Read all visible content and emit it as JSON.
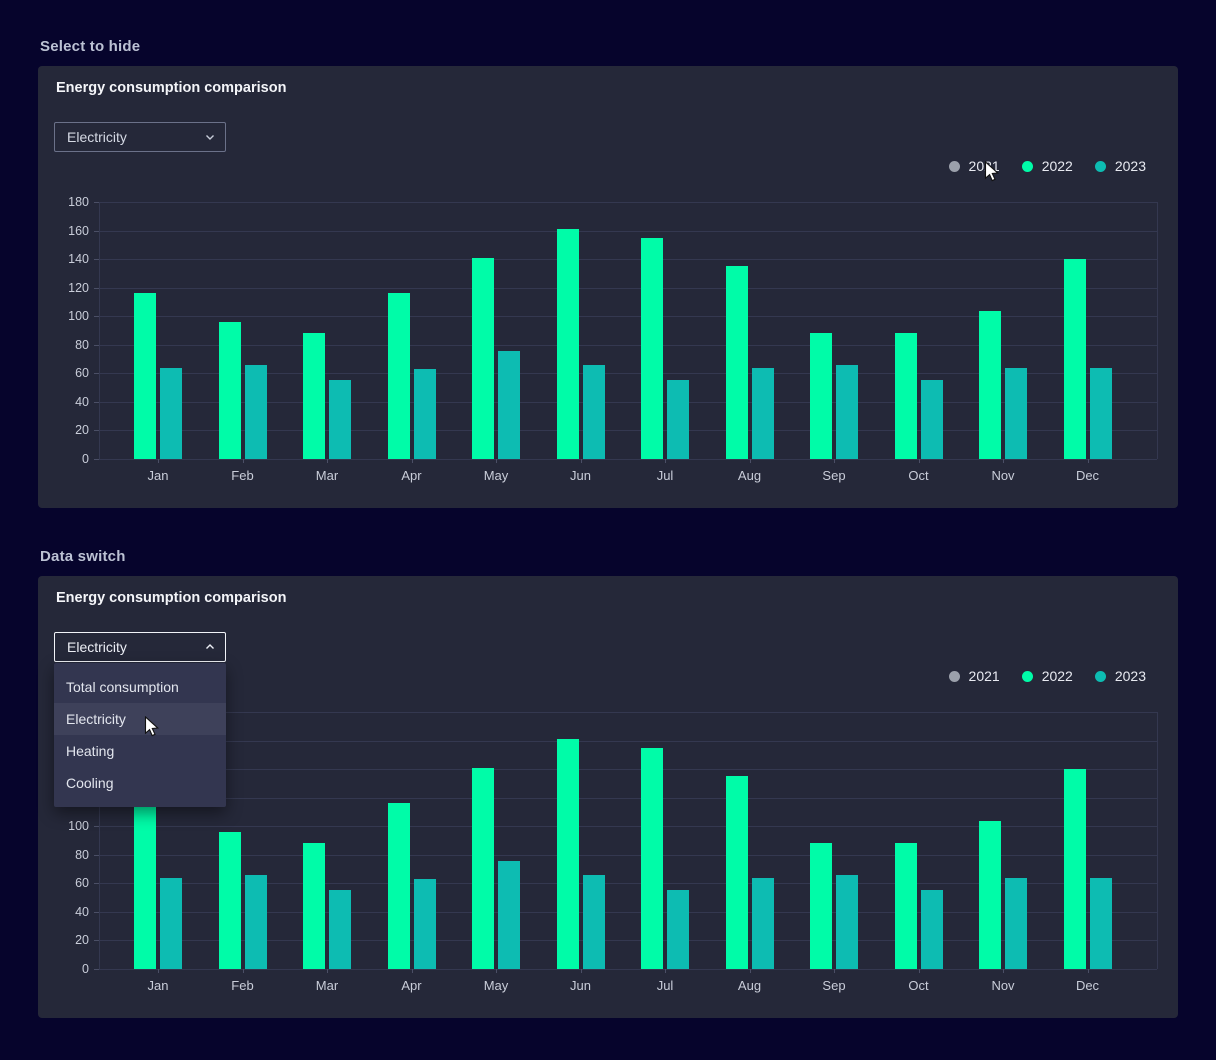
{
  "sections": [
    {
      "label": "Select to hide",
      "panel_title": "Energy consumption comparison",
      "dropdown": {
        "value": "Electricity",
        "state": "collapsed"
      }
    },
    {
      "label": "Data switch",
      "panel_title": "Energy consumption comparison",
      "dropdown": {
        "value": "Electricity",
        "state": "expanded",
        "options": [
          "Total consumption",
          "Electricity",
          "Heating",
          "Cooling"
        ],
        "highlighted_option": "Electricity"
      }
    }
  ],
  "colors": {
    "page_bg": "#06042c",
    "panel_bg": "#252839",
    "menu_bg": "#333650",
    "menu_highlight": "#3e415a",
    "grid": "#343850",
    "series_2022": "#00fca8",
    "series_2023": "#0dbcb2",
    "legend_deselected": "#9ba0ab"
  },
  "chart_data": {
    "type": "bar",
    "title": "Energy consumption comparison",
    "categories": [
      "Jan",
      "Feb",
      "Mar",
      "Apr",
      "May",
      "Jun",
      "Jul",
      "Aug",
      "Sep",
      "Oct",
      "Nov",
      "Dec"
    ],
    "series": [
      {
        "name": "2021",
        "hidden": true,
        "values": [],
        "color": "#9ba0ab",
        "dot": "#9ba0ab"
      },
      {
        "name": "2022",
        "hidden": false,
        "color": "#00fca8",
        "dot": "#00fca8",
        "values": [
          116,
          96,
          88,
          116,
          141,
          161,
          155,
          135,
          88,
          88,
          104,
          140
        ]
      },
      {
        "name": "2023",
        "hidden": false,
        "color": "#0dbcb2",
        "dot": "#0dbcb2",
        "values": [
          64,
          66,
          55,
          63,
          76,
          66,
          55,
          64,
          66,
          55,
          64,
          64
        ]
      }
    ],
    "xlabel": "",
    "ylabel": "",
    "ylim": [
      0,
      180
    ],
    "yticks": [
      0,
      20,
      40,
      60,
      80,
      100,
      120,
      140,
      160,
      180
    ],
    "grid": true,
    "legend_position": "top-right",
    "note": "Both panels render the same chart; 2021 series is deselected/hidden in both"
  }
}
